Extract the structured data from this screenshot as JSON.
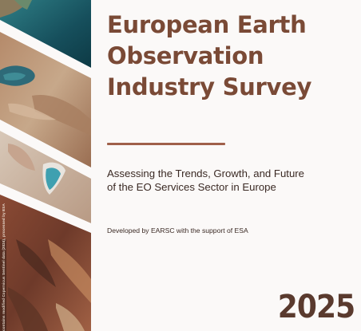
{
  "cover": {
    "title_lines": [
      "European Earth",
      "Observation",
      "Industry Survey"
    ],
    "subtitle_lines": [
      "Assessing the Trends, Growth, and Future",
      "of the EO Services Sector in Europe"
    ],
    "developed_by": "Developed by EARSC with the support of ESA",
    "year": "2025",
    "image_credit": "contains modified Copernicus Sentinel data (2024), processed by ESA"
  },
  "colors": {
    "title": "#7a4a36",
    "divider": "#a0604a",
    "body_text": "#3b2a24",
    "year": "#5a3a2e",
    "background": "#fbf9f8"
  }
}
